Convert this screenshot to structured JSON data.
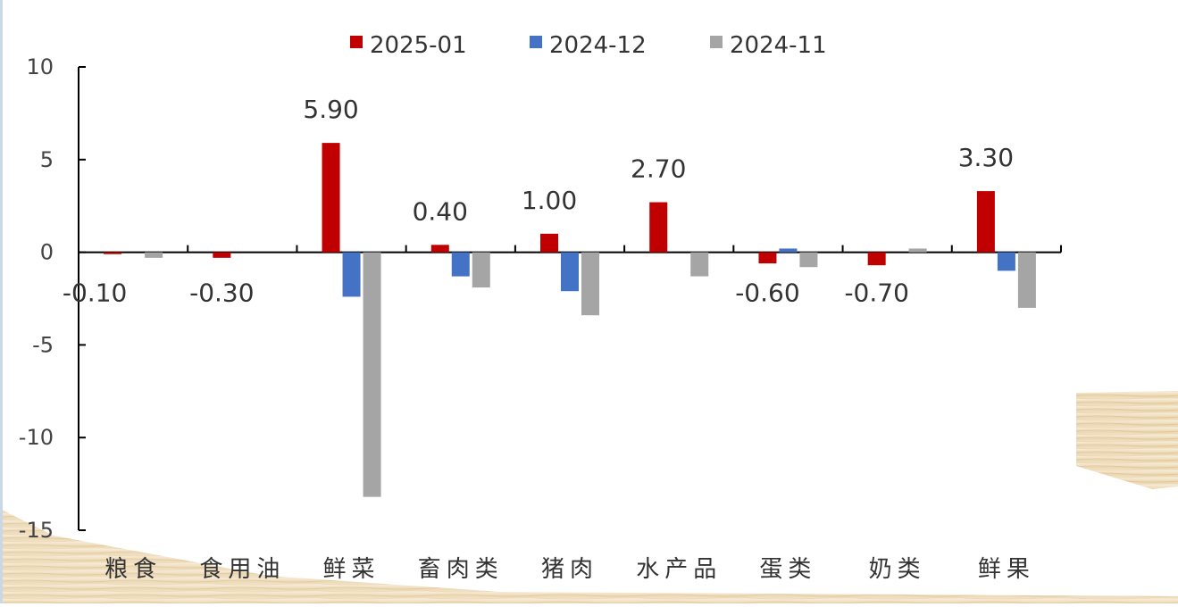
{
  "chart_data": {
    "type": "bar",
    "title": "",
    "xlabel": "",
    "ylabel": "",
    "ylim": [
      -15,
      10
    ],
    "yticks": [
      10,
      5,
      0,
      -5,
      -10,
      -15
    ],
    "grid": false,
    "legend_position": "top-center",
    "categories": [
      "粮食",
      "食用油",
      "鲜菜",
      "畜肉类",
      "猪肉",
      "水产品",
      "蛋类",
      "奶类",
      "鲜果"
    ],
    "series": [
      {
        "name": "2025-01",
        "color": "#C00000",
        "values": [
          -0.1,
          -0.3,
          5.9,
          0.4,
          1.0,
          2.7,
          -0.6,
          -0.7,
          3.3
        ],
        "data_labels": [
          "-0.10",
          "-0.30",
          "5.90",
          "0.40",
          "1.00",
          "2.70",
          "-0.60",
          "-0.70",
          "3.30"
        ]
      },
      {
        "name": "2024-12",
        "color": "#4472C4",
        "values": [
          0,
          0,
          -2.4,
          -1.3,
          -2.1,
          0,
          0.2,
          0,
          -1.0
        ]
      },
      {
        "name": "2024-11",
        "color": "#A5A5A5",
        "values": [
          -0.3,
          0,
          -13.2,
          -1.9,
          -3.4,
          -1.3,
          -0.8,
          0.2,
          -3.0
        ]
      }
    ]
  }
}
